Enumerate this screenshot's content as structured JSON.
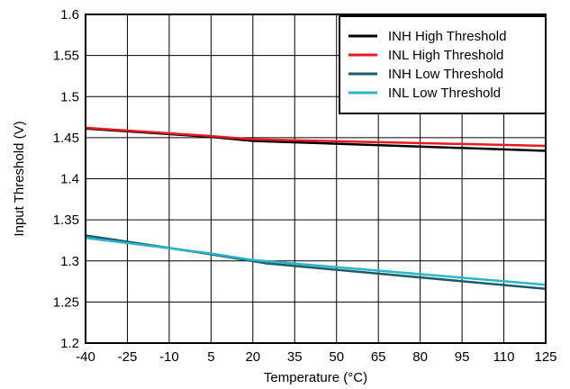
{
  "chart_data": {
    "type": "line",
    "xlabel": "Temperature (°C)",
    "ylabel": "Input Threshold (V)",
    "xlim": [
      -40,
      125
    ],
    "ylim": [
      1.2,
      1.6
    ],
    "xticks": [
      -40,
      -25,
      -10,
      5,
      20,
      35,
      50,
      65,
      80,
      95,
      110,
      125
    ],
    "xtick_labels": [
      "-40",
      "-25",
      "-10",
      "5",
      "20",
      "35",
      "50",
      "65",
      "80",
      "95",
      "110",
      "125"
    ],
    "yticks": [
      1.2,
      1.25,
      1.3,
      1.35,
      1.4,
      1.45,
      1.5,
      1.55,
      1.6
    ],
    "ytick_labels": [
      "1.2",
      "1.25",
      "1.3",
      "1.35",
      "1.4",
      "1.45",
      "1.5",
      "1.55",
      "1.6"
    ],
    "grid": true,
    "legend_position": "top-right",
    "series": [
      {
        "name": "INH High Threshold",
        "color": "#000000",
        "x": [
          -40,
          5,
          20,
          125
        ],
        "y": [
          1.461,
          1.451,
          1.446,
          1.434
        ]
      },
      {
        "name": "INL High Threshold",
        "color": "#e8191f",
        "x": [
          -40,
          5,
          20,
          125
        ],
        "y": [
          1.462,
          1.452,
          1.448,
          1.44
        ]
      },
      {
        "name": "INH Low Threshold",
        "color": "#1d5b6b",
        "x": [
          -40,
          5,
          25,
          125
        ],
        "y": [
          1.331,
          1.308,
          1.297,
          1.266
        ]
      },
      {
        "name": "INL Low Threshold",
        "color": "#2ab5c9",
        "x": [
          -40,
          5,
          20,
          125
        ],
        "y": [
          1.328,
          1.309,
          1.301,
          1.271
        ]
      }
    ]
  }
}
